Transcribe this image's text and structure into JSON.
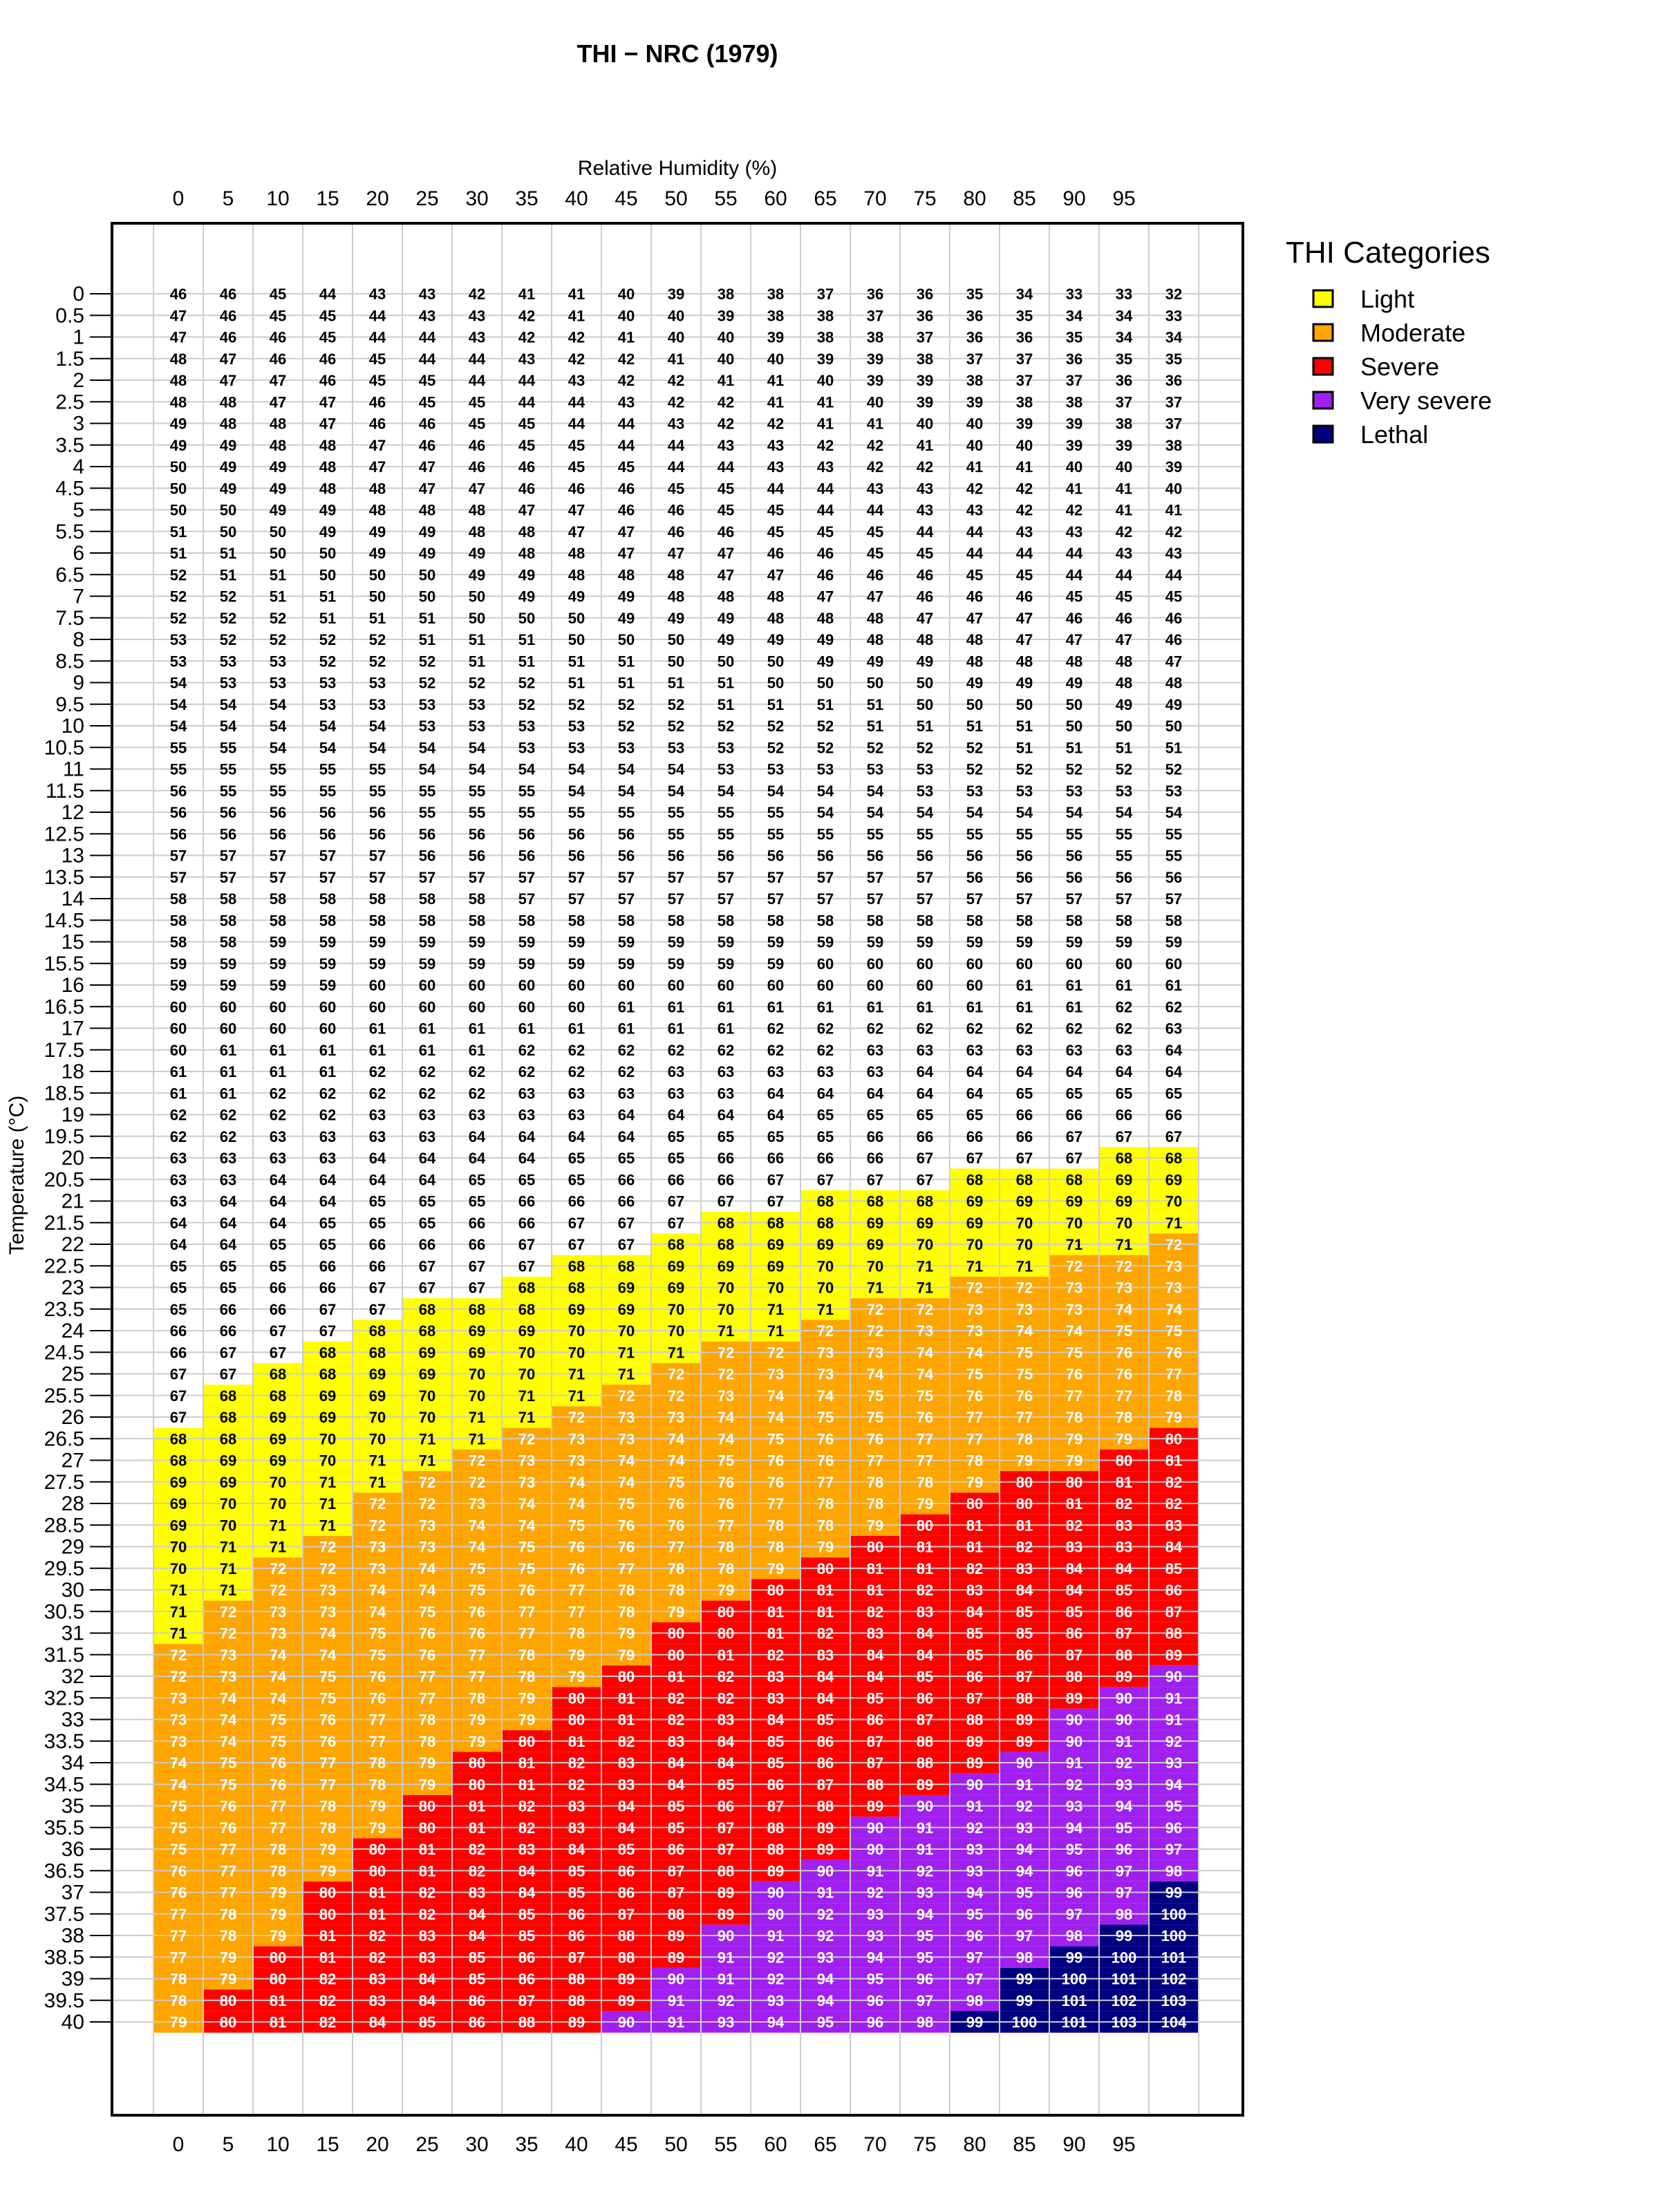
{
  "chart_data": {
    "type": "heatmap",
    "title": "THI − NRC (1979)",
    "xlabel": "Relative Humidity (%)",
    "ylabel": "Temperature (°C)",
    "x": [
      0,
      5,
      10,
      15,
      20,
      25,
      30,
      35,
      40,
      45,
      50,
      55,
      60,
      65,
      70,
      75,
      80,
      85,
      90,
      95,
      100
    ],
    "x_tick_labels": [
      "0",
      "5",
      "10",
      "15",
      "20",
      "25",
      "30",
      "35",
      "40",
      "45",
      "50",
      "55",
      "60",
      "65",
      "70",
      "75",
      "80",
      "85",
      "90",
      "95"
    ],
    "y": [
      "0",
      "0.5",
      "1",
      "1.5",
      "2",
      "2.5",
      "3",
      "3.5",
      "4",
      "4.5",
      "5",
      "5.5",
      "6",
      "6.5",
      "7",
      "7.5",
      "8",
      "8.5",
      "9",
      "9.5",
      "10",
      "10.5",
      "11",
      "11.5",
      "12",
      "12.5",
      "13",
      "13.5",
      "14",
      "14.5",
      "15",
      "15.5",
      "16",
      "16.5",
      "17",
      "17.5",
      "18",
      "18.5",
      "19",
      "19.5",
      "20",
      "20.5",
      "21",
      "21.5",
      "22",
      "22.5",
      "23",
      "23.5",
      "24",
      "24.5",
      "25",
      "25.5",
      "26",
      "26.5",
      "27",
      "27.5",
      "28",
      "28.5",
      "29",
      "29.5",
      "30",
      "30.5",
      "31",
      "31.5",
      "32",
      "32.5",
      "33",
      "33.5",
      "34",
      "34.5",
      "35",
      "35.5",
      "36",
      "36.5",
      "37",
      "37.5",
      "38",
      "38.5",
      "39",
      "39.5",
      "40"
    ],
    "value_formula": "round(1.8*T + 32 - (0.55 - 0.0055*RH)*(1.8*T - 26))",
    "grid": true,
    "legend_placement": "right",
    "legend": {
      "title": "THI Categories",
      "items": [
        {
          "label": "Light",
          "min": 68,
          "max": 71,
          "color": "#FFFF00"
        },
        {
          "label": "Moderate",
          "min": 72,
          "max": 79,
          "color": "#FFA500"
        },
        {
          "label": "Severe",
          "min": 80,
          "max": 89,
          "color": "#FF0000"
        },
        {
          "label": "Very severe",
          "min": 90,
          "max": 98,
          "color": "#A020F0"
        },
        {
          "label": "Lethal",
          "min": 99,
          "max": 200,
          "color": "#000080"
        }
      ]
    }
  }
}
